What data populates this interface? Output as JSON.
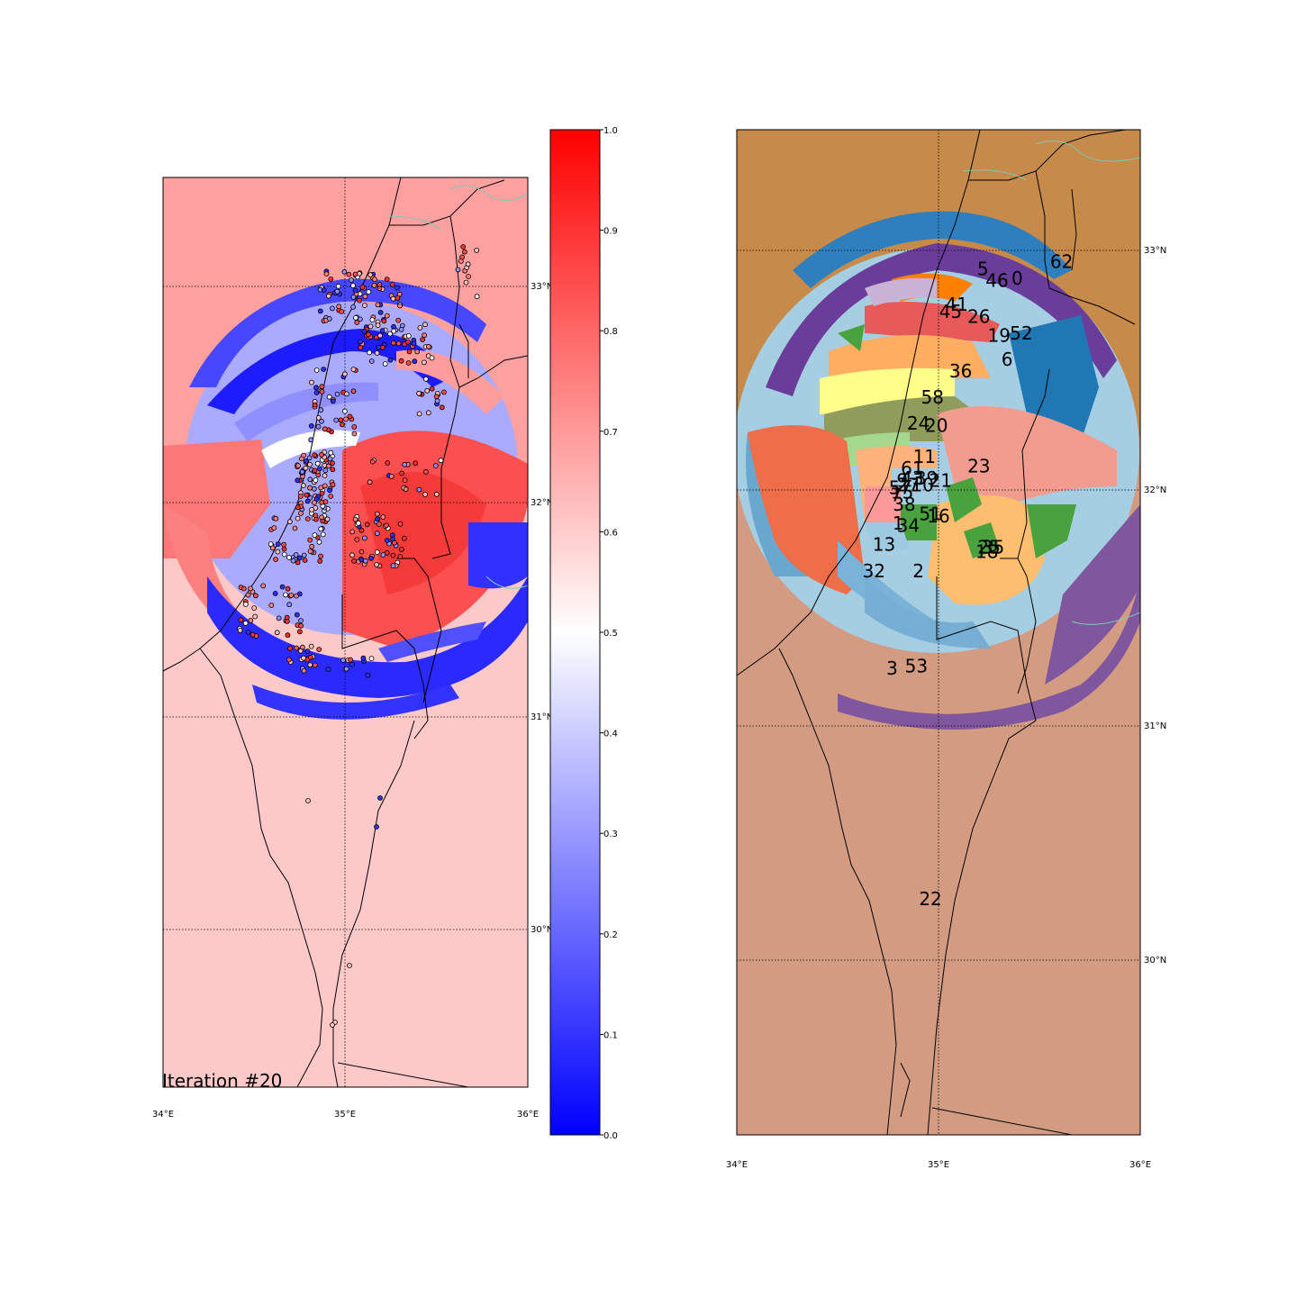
{
  "left_map": {
    "iteration_label": "Iteration #20",
    "lon_ticks": [
      "34°E",
      "35°E",
      "36°E"
    ],
    "lat_ticks": [
      "33°N",
      "32°N",
      "31°N",
      "30°N"
    ],
    "background_color": "#fcc8c8",
    "north_background_color": "#fca0a0"
  },
  "colorbar": {
    "min": 0.0,
    "max": 1.0,
    "ticks": [
      "0.0",
      "0.1",
      "0.2",
      "0.3",
      "0.4",
      "0.5",
      "0.6",
      "0.7",
      "0.8",
      "0.9",
      "1.0"
    ],
    "colormap": [
      "#0000ff",
      "#ffffff",
      "#ff0000"
    ]
  },
  "right_map": {
    "lon_ticks": [
      "34°E",
      "35°E",
      "36°E"
    ],
    "lat_ticks": [
      "33°N",
      "32°N",
      "31°N",
      "30°N"
    ],
    "north_background_color": "#c68a4a",
    "south_background_color": "#d39c82",
    "cluster_labels": [
      {
        "id": "5",
        "lon": 35.22,
        "lat": 32.93
      },
      {
        "id": "46",
        "lon": 35.29,
        "lat": 32.88
      },
      {
        "id": "0",
        "lon": 35.39,
        "lat": 32.89
      },
      {
        "id": "62",
        "lon": 35.61,
        "lat": 32.96
      },
      {
        "id": "41",
        "lon": 35.09,
        "lat": 32.78
      },
      {
        "id": "45",
        "lon": 35.06,
        "lat": 32.75
      },
      {
        "id": "26",
        "lon": 35.2,
        "lat": 32.73
      },
      {
        "id": "19",
        "lon": 35.3,
        "lat": 32.65
      },
      {
        "id": "52",
        "lon": 35.41,
        "lat": 32.66
      },
      {
        "id": "6",
        "lon": 35.34,
        "lat": 32.55
      },
      {
        "id": "36",
        "lon": 35.11,
        "lat": 32.5
      },
      {
        "id": "58",
        "lon": 34.97,
        "lat": 32.39
      },
      {
        "id": "24",
        "lon": 34.9,
        "lat": 32.28
      },
      {
        "id": "20",
        "lon": 34.99,
        "lat": 32.27
      },
      {
        "id": "11",
        "lon": 34.93,
        "lat": 32.14
      },
      {
        "id": "23",
        "lon": 35.2,
        "lat": 32.1
      },
      {
        "id": "61",
        "lon": 34.87,
        "lat": 32.09
      },
      {
        "id": "9",
        "lon": 34.82,
        "lat": 32.04
      },
      {
        "id": "43",
        "lon": 34.87,
        "lat": 32.05
      },
      {
        "id": "39",
        "lon": 34.94,
        "lat": 32.05
      },
      {
        "id": "21",
        "lon": 35.01,
        "lat": 32.04
      },
      {
        "id": "57",
        "lon": 34.81,
        "lat": 32.01
      },
      {
        "id": "27",
        "lon": 34.85,
        "lat": 32.02
      },
      {
        "id": "10",
        "lon": 34.92,
        "lat": 32.02
      },
      {
        "id": "7",
        "lon": 34.79,
        "lat": 31.98
      },
      {
        "id": "15",
        "lon": 34.82,
        "lat": 31.99
      },
      {
        "id": "38",
        "lon": 34.83,
        "lat": 31.94
      },
      {
        "id": "51",
        "lon": 34.96,
        "lat": 31.9
      },
      {
        "id": "16",
        "lon": 35.0,
        "lat": 31.89
      },
      {
        "id": "1",
        "lon": 34.8,
        "lat": 31.86
      },
      {
        "id": "34",
        "lon": 34.85,
        "lat": 31.85
      },
      {
        "id": "13",
        "lon": 34.73,
        "lat": 31.77
      },
      {
        "id": "35",
        "lon": 35.27,
        "lat": 31.76
      },
      {
        "id": "25",
        "lon": 35.25,
        "lat": 31.76
      },
      {
        "id": "18",
        "lon": 35.24,
        "lat": 31.74
      },
      {
        "id": "32",
        "lon": 34.68,
        "lat": 31.66
      },
      {
        "id": "2",
        "lon": 34.9,
        "lat": 31.66
      },
      {
        "id": "3",
        "lon": 34.77,
        "lat": 31.25
      },
      {
        "id": "53",
        "lon": 34.89,
        "lat": 31.26
      },
      {
        "id": "22",
        "lon": 34.96,
        "lat": 30.28
      }
    ]
  }
}
